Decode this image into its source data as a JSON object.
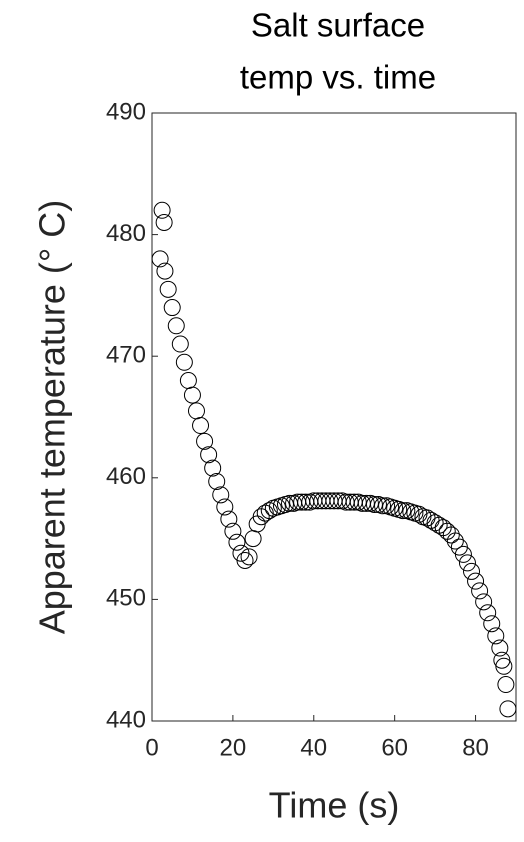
{
  "chart_data": {
    "type": "scatter",
    "title": [
      "Salt surface",
      "temp vs. time"
    ],
    "xlabel": "Time (s)",
    "ylabel": "Apparent temperature (° C)",
    "marker": "open-circle",
    "color": "#000000",
    "xlim": [
      0,
      90
    ],
    "xticks": [
      0,
      20,
      40,
      60,
      80
    ],
    "ylim": [
      440,
      490
    ],
    "yticks": [
      440,
      450,
      460,
      470,
      480,
      490
    ],
    "grid": false,
    "x": [
      2,
      2.5,
      3,
      3.2,
      4,
      5,
      6,
      7,
      8,
      9,
      10,
      11,
      12,
      13,
      14,
      15,
      16,
      17,
      18,
      19,
      20,
      21,
      22,
      23,
      24,
      25,
      26,
      27,
      28,
      29,
      30,
      31,
      32,
      33,
      34,
      35,
      36,
      37,
      38,
      39,
      40,
      41,
      42,
      43,
      44,
      45,
      46,
      47,
      48,
      49,
      50,
      51,
      52,
      53,
      54,
      55,
      56,
      57,
      58,
      59,
      60,
      61,
      62,
      63,
      64,
      65,
      66,
      67,
      68,
      69,
      70,
      71,
      72,
      73,
      74,
      75,
      76,
      77,
      78,
      79,
      80,
      81,
      82,
      83,
      84,
      85,
      86,
      86.5,
      87,
      87.5,
      88
    ],
    "y": [
      478,
      482,
      481,
      477,
      475.5,
      474,
      472.5,
      471,
      469.5,
      468,
      466.8,
      465.5,
      464.3,
      463,
      461.9,
      460.8,
      459.7,
      458.6,
      457.6,
      456.6,
      455.6,
      454.7,
      453.8,
      453.2,
      453.5,
      455,
      456.2,
      456.8,
      457.1,
      457.3,
      457.5,
      457.6,
      457.7,
      457.8,
      457.9,
      457.9,
      458,
      458,
      458,
      458,
      458.1,
      458.1,
      458.1,
      458.1,
      458.1,
      458.1,
      458.1,
      458.1,
      458,
      458,
      458,
      458,
      457.9,
      457.9,
      457.9,
      457.8,
      457.8,
      457.7,
      457.7,
      457.6,
      457.5,
      457.4,
      457.3,
      457.3,
      457.2,
      457.1,
      457,
      456.8,
      456.7,
      456.5,
      456.3,
      456.1,
      455.9,
      455.6,
      455.3,
      454.8,
      454.3,
      453.7,
      453,
      452.3,
      451.5,
      450.7,
      449.8,
      448.9,
      448,
      447,
      446,
      445,
      444.5,
      443,
      441
    ]
  }
}
